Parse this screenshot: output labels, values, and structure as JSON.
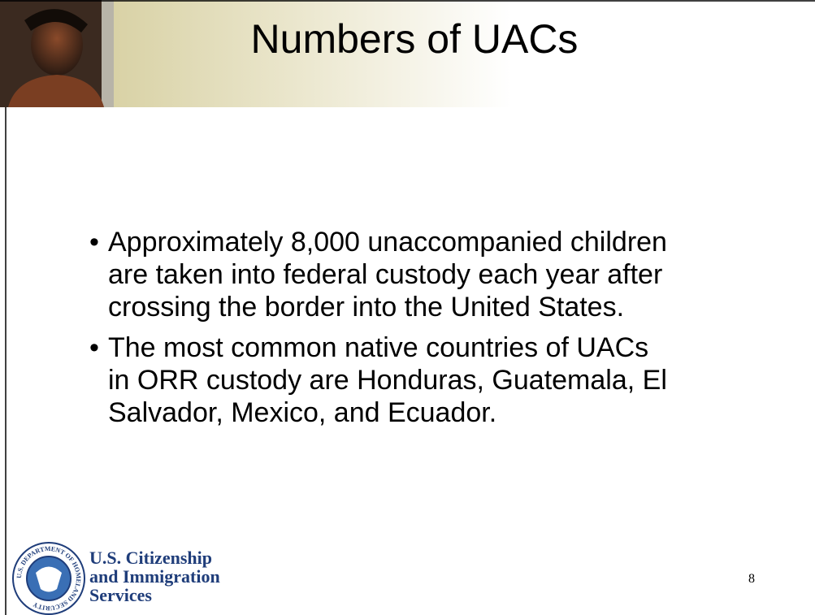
{
  "header": {
    "title": "Numbers of UACs"
  },
  "bullets": [
    {
      "lines": [
        "Approximately 8,000 unaccompanied children",
        "are taken into federal custody each year after",
        "crossing the border into the United States."
      ]
    },
    {
      "lines": [
        "The most common native countries of UACs",
        "in ORR custody are Honduras, Guatemala, El",
        "Salvador, Mexico, and Ecuador."
      ]
    }
  ],
  "footer": {
    "seal_text": "U.S. DEPARTMENT OF HOMELAND SECURITY",
    "agency_lines": [
      "U.S. Citizenship",
      "and Immigration",
      "Services"
    ],
    "page_number": "8"
  }
}
